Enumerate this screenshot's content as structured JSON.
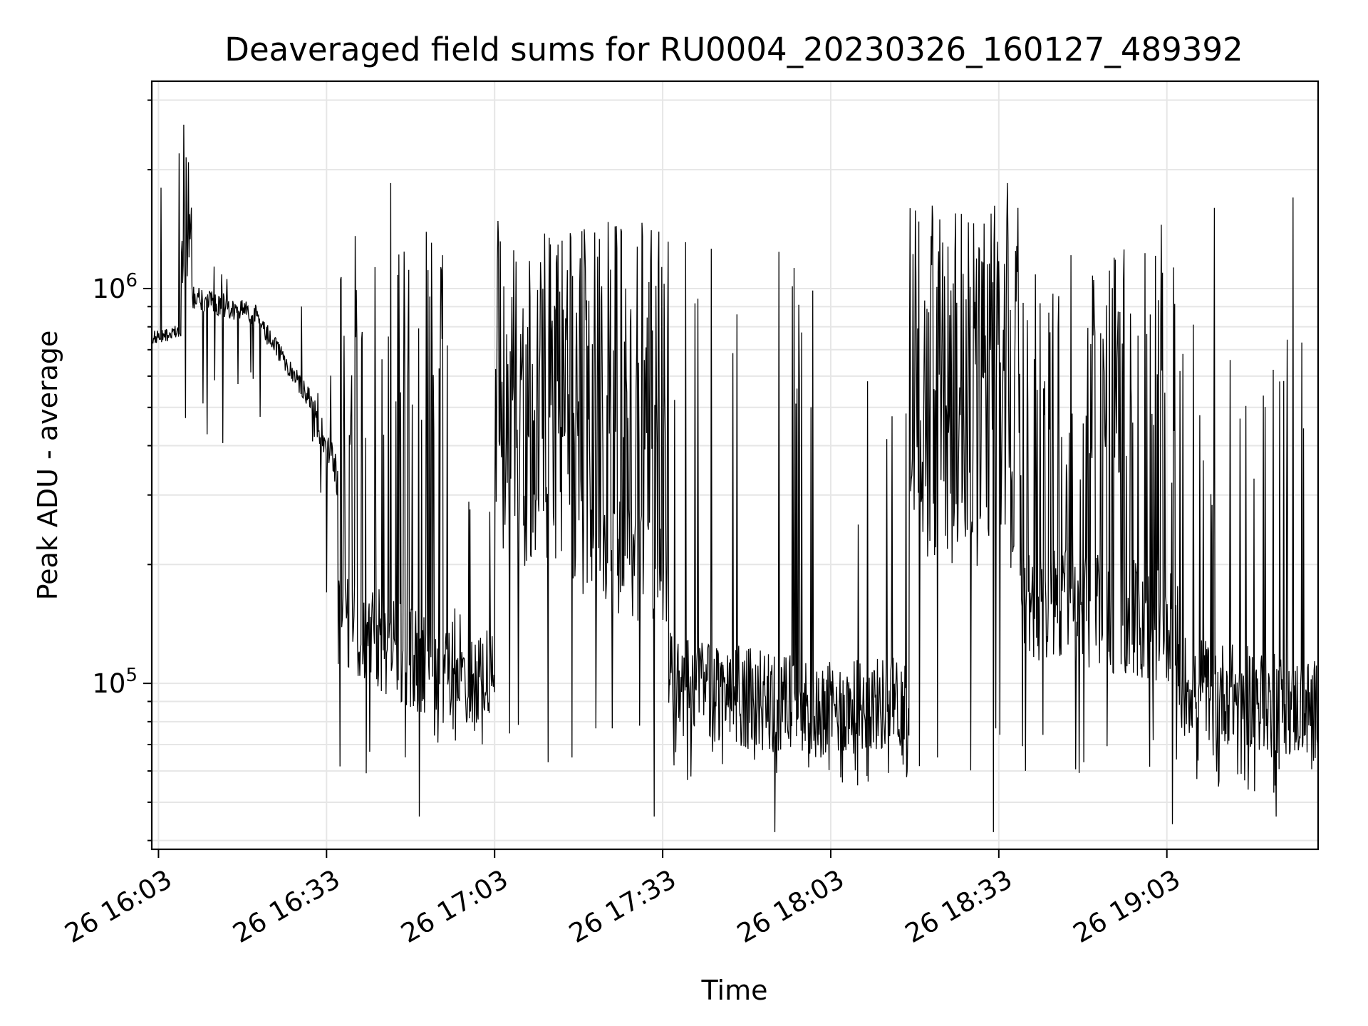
{
  "chart_data": {
    "type": "line",
    "title": "Deaveraged field sums for RU0004_20230326_160127_489392",
    "xlabel": "Time",
    "ylabel": "Peak ADU - average",
    "x_tick_labels": [
      "26 16:03",
      "26 16:33",
      "26 17:03",
      "26 17:33",
      "26 18:03",
      "26 18:33",
      "26 19:03"
    ],
    "x_ticks_minutes_after_16_00": [
      3,
      33,
      63,
      93,
      123,
      153,
      183
    ],
    "xlim_minutes_after_16_00": [
      1.8,
      210
    ],
    "y_scale": "log",
    "ylim": [
      38000,
      3350000
    ],
    "y_tick_labels": [
      {
        "base": "10",
        "exp": "5",
        "value": 100000
      },
      {
        "base": "10",
        "exp": "6",
        "value": 1000000
      }
    ],
    "grid": true,
    "line_color": "#000000",
    "grid_color": "#e6e6e6",
    "series": [
      {
        "x_range_minutes": [
          2,
          210
        ],
        "points": 2000,
        "segments": [
          {
            "t0": 2,
            "t1": 7,
            "kind": "smooth",
            "v0": 750000,
            "v1": 780000,
            "noise": 0.04,
            "spike": 0.0,
            "spikeHigh": 0,
            "dip": 0,
            "dipLow": 0
          },
          {
            "t0": 7,
            "t1": 9,
            "kind": "spiky",
            "v0": 1200000,
            "v1": 1300000,
            "noise": 0.25,
            "spike": 0.35,
            "spikeHigh": 2400000,
            "dip": 0.05,
            "dipLow": 700000
          },
          {
            "t0": 9,
            "t1": 21,
            "kind": "smooth",
            "v0": 950000,
            "v1": 850000,
            "noise": 0.07,
            "spike": 0.08,
            "spikeHigh": 1150000,
            "dip": 0.01,
            "dipLow": 480000
          },
          {
            "t0": 21,
            "t1": 31,
            "kind": "smooth",
            "v0": 820000,
            "v1": 500000,
            "noise": 0.06,
            "spike": 0.04,
            "spikeHigh": 880000,
            "dip": 0.02,
            "dipLow": 420000
          },
          {
            "t0": 31,
            "t1": 35,
            "kind": "smooth",
            "v0": 480000,
            "v1": 330000,
            "noise": 0.12,
            "spike": 0.06,
            "spikeHigh": 750000,
            "dip": 0.03,
            "dipLow": 170000
          },
          {
            "t0": 35,
            "t1": 55,
            "kind": "alternating",
            "v0": 150000,
            "v1": 100000,
            "noise": 0.3,
            "spike": 0.22,
            "spikeHigh": 1500000,
            "dip": 0.05,
            "dipLow": 58000
          },
          {
            "t0": 55,
            "t1": 63,
            "kind": "alternating",
            "v0": 90000,
            "v1": 110000,
            "noise": 0.25,
            "spike": 0.1,
            "spikeHigh": 300000,
            "dip": 0.06,
            "dipLow": 62000
          },
          {
            "t0": 63,
            "t1": 94,
            "kind": "alternating",
            "v0": 300000,
            "v1": 180000,
            "noise": 0.35,
            "spike": 0.45,
            "spikeHigh": 1500000,
            "dip": 0.06,
            "dipLow": 62000
          },
          {
            "t0": 94,
            "t1": 120,
            "kind": "noisy",
            "v0": 100000,
            "v1": 85000,
            "noise": 0.3,
            "spike": 0.06,
            "spikeHigh": 1400000,
            "dip": 0.06,
            "dipLow": 55000
          },
          {
            "t0": 120,
            "t1": 137,
            "kind": "noisy",
            "v0": 85000,
            "v1": 90000,
            "noise": 0.28,
            "spike": 0.04,
            "spikeHigh": 650000,
            "dip": 0.07,
            "dipLow": 55000
          },
          {
            "t0": 137,
            "t1": 157,
            "kind": "alternating",
            "v0": 300000,
            "v1": 250000,
            "noise": 0.35,
            "spike": 0.5,
            "spikeHigh": 1650000,
            "dip": 0.06,
            "dipLow": 60000
          },
          {
            "t0": 157,
            "t1": 185,
            "kind": "alternating",
            "v0": 160000,
            "v1": 140000,
            "noise": 0.35,
            "spike": 0.3,
            "spikeHigh": 1300000,
            "dip": 0.07,
            "dipLow": 58000
          },
          {
            "t0": 185,
            "t1": 210,
            "kind": "noisy",
            "v0": 100000,
            "v1": 85000,
            "noise": 0.3,
            "spike": 0.1,
            "spikeHigh": 850000,
            "dip": 0.08,
            "dipLow": 52000
          }
        ],
        "notable_peaks": [
          {
            "x": 7.5,
            "y": 2600000
          },
          {
            "x": 6.7,
            "y": 2200000
          },
          {
            "x": 3.5,
            "y": 1800000
          },
          {
            "x": 44.5,
            "y": 1850000
          },
          {
            "x": 154.5,
            "y": 1850000
          },
          {
            "x": 205.5,
            "y": 1700000
          },
          {
            "x": 191.5,
            "y": 1600000
          },
          {
            "x": 182.0,
            "y": 1450000
          },
          {
            "x": 28.5,
            "y": 900000
          }
        ],
        "notable_dips": [
          {
            "x": 7.8,
            "y": 470000
          },
          {
            "x": 30.5,
            "y": 410000
          },
          {
            "x": 33.0,
            "y": 170000
          },
          {
            "x": 37.0,
            "y": 110000
          },
          {
            "x": 113.0,
            "y": 42000
          },
          {
            "x": 152.0,
            "y": 42000
          },
          {
            "x": 184.0,
            "y": 44000
          },
          {
            "x": 202.5,
            "y": 46000
          },
          {
            "x": 49.5,
            "y": 46000
          },
          {
            "x": 91.5,
            "y": 46000
          }
        ]
      }
    ]
  }
}
